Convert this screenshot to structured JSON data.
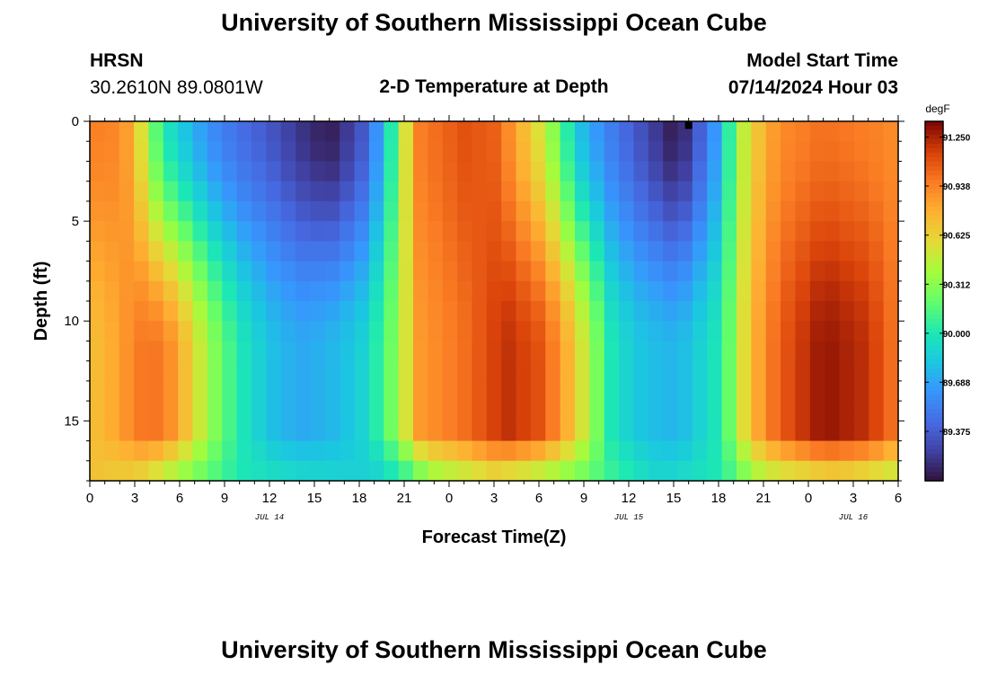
{
  "header": {
    "title": "University of Southern Mississippi Ocean Cube",
    "station": "HRSN",
    "coords": "30.2610N  89.0801W",
    "chart_title": "2-D Temperature at Depth",
    "model_label": "Model Start Time",
    "model_time": "07/14/2024 Hour 03"
  },
  "footer": {
    "title": "University of Southern Mississippi Ocean Cube"
  },
  "chart_data": {
    "type": "heatmap",
    "title": "2-D Temperature at Depth",
    "xlabel": "Forecast Time(Z)",
    "ylabel": "Depth (ft)",
    "x_range_hours": [
      0,
      54
    ],
    "y_range_ft": [
      0,
      18
    ],
    "y_inverted": true,
    "x_ticks": [
      "0",
      "3",
      "6",
      "9",
      "12",
      "15",
      "18",
      "21",
      "0",
      "3",
      "6",
      "9",
      "12",
      "15",
      "18",
      "21",
      "0",
      "3",
      "6"
    ],
    "y_ticks": [
      "0",
      "5",
      "10",
      "15"
    ],
    "y_tick_values": [
      0,
      5,
      10,
      15
    ],
    "date_labels": [
      {
        "text": "JUL 14",
        "hour": 12
      },
      {
        "text": "JUL 15",
        "hour": 36
      },
      {
        "text": "JUL 16",
        "hour": 51
      }
    ],
    "colorbar": {
      "unit": "degF",
      "min": 89.06,
      "max": 91.35,
      "labels": [
        "91.250",
        "90.938",
        "90.625",
        "90.312",
        "90.000",
        "89.688",
        "89.375"
      ],
      "label_values": [
        91.25,
        90.938,
        90.625,
        90.312,
        90.0,
        89.688,
        89.375
      ]
    },
    "grid": {
      "n_time": 55,
      "n_depth": 18,
      "time_profile": [
        [
          0,
          90.95,
          90.7
        ],
        [
          2,
          90.92,
          90.82
        ],
        [
          3,
          90.75,
          90.95
        ],
        [
          4,
          90.3,
          91.0
        ],
        [
          5,
          90.0,
          90.95
        ],
        [
          6,
          89.85,
          90.8
        ],
        [
          8,
          89.6,
          90.35
        ],
        [
          10,
          89.45,
          90.0
        ],
        [
          12,
          89.35,
          89.8
        ],
        [
          14,
          89.2,
          89.7
        ],
        [
          16,
          89.1,
          89.75
        ],
        [
          18,
          89.3,
          89.85
        ],
        [
          19,
          89.55,
          90.0
        ],
        [
          20,
          89.95,
          90.2
        ],
        [
          21,
          90.5,
          90.5
        ],
        [
          22,
          90.95,
          90.85
        ],
        [
          25,
          91.1,
          91.0
        ],
        [
          27,
          91.05,
          91.15
        ],
        [
          28,
          90.9,
          91.2
        ],
        [
          30,
          90.55,
          91.1
        ],
        [
          31,
          90.3,
          90.95
        ],
        [
          32,
          90.0,
          90.75
        ],
        [
          33,
          89.75,
          90.5
        ],
        [
          35,
          89.5,
          89.95
        ],
        [
          37,
          89.3,
          89.8
        ],
        [
          39,
          89.1,
          89.75
        ],
        [
          40,
          89.2,
          89.8
        ],
        [
          42,
          89.7,
          90.0
        ],
        [
          43,
          90.2,
          90.3
        ],
        [
          44,
          90.6,
          90.7
        ],
        [
          46,
          90.9,
          91.05
        ],
        [
          49,
          91.0,
          91.3
        ],
        [
          52,
          90.95,
          91.2
        ],
        [
          54,
          90.9,
          90.95
        ]
      ],
      "bottom_profile": [
        [
          0,
          90.7
        ],
        [
          3,
          90.6
        ],
        [
          6,
          90.3
        ],
        [
          10,
          90.0
        ],
        [
          16,
          89.9
        ],
        [
          19,
          89.85
        ],
        [
          21,
          90.0
        ],
        [
          23,
          90.3
        ],
        [
          27,
          90.5
        ],
        [
          33,
          90.2
        ],
        [
          38,
          89.9
        ],
        [
          42,
          90.0
        ],
        [
          45,
          90.4
        ],
        [
          50,
          90.55
        ],
        [
          54,
          90.4
        ]
      ],
      "marker": {
        "hour": 40,
        "depth": 0.2
      }
    }
  }
}
